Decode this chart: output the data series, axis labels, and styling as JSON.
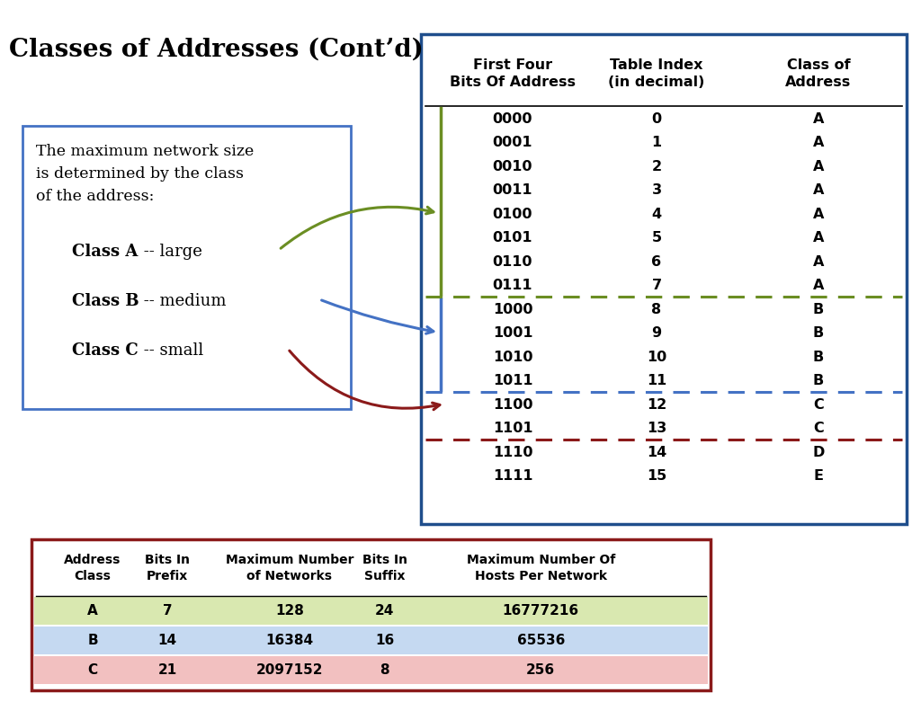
{
  "title": "Classes of Addresses (Cont’d)",
  "background_color": "#ffffff",
  "left_box_text": "The maximum network size\nis determined by the class\nof the address:",
  "class_labels": [
    {
      "bold": "Class A",
      "normal": " -- large"
    },
    {
      "bold": "Class B",
      "normal": " -- medium"
    },
    {
      "bold": "Class C",
      "normal": " -- small"
    }
  ],
  "table1_headers": [
    "First Four\nBits Of Address",
    "Table Index\n(in decimal)",
    "Class of\nAddress"
  ],
  "table1_rows": [
    [
      "0000",
      "0",
      "A"
    ],
    [
      "0001",
      "1",
      "A"
    ],
    [
      "0010",
      "2",
      "A"
    ],
    [
      "0011",
      "3",
      "A"
    ],
    [
      "0100",
      "4",
      "A"
    ],
    [
      "0101",
      "5",
      "A"
    ],
    [
      "0110",
      "6",
      "A"
    ],
    [
      "0111",
      "7",
      "A"
    ],
    [
      "1000",
      "8",
      "B"
    ],
    [
      "1001",
      "9",
      "B"
    ],
    [
      "1010",
      "10",
      "B"
    ],
    [
      "1011",
      "11",
      "B"
    ],
    [
      "1100",
      "12",
      "C"
    ],
    [
      "1101",
      "13",
      "C"
    ],
    [
      "1110",
      "14",
      "D"
    ],
    [
      "1111",
      "15",
      "E"
    ]
  ],
  "dashed_line_after_row": [
    7,
    11,
    13
  ],
  "dashed_line_colors": [
    "#6b8e23",
    "#4472c4",
    "#8b1a1a"
  ],
  "table2_headers": [
    "Address\nClass",
    "Bits In\nPrefix",
    "Maximum Number\nof Networks",
    "Bits In\nSuffix",
    "Maximum Number Of\nHosts Per Network"
  ],
  "table2_rows": [
    [
      "A",
      "7",
      "128",
      "24",
      "16777216"
    ],
    [
      "B",
      "14",
      "16384",
      "16",
      "65536"
    ],
    [
      "C",
      "21",
      "2097152",
      "8",
      "256"
    ]
  ],
  "table2_row_colors": [
    "#d9e8b0",
    "#c5d9f1",
    "#f2c0c0"
  ],
  "arrow_color_A": "#6b8e23",
  "arrow_color_B": "#4472c4",
  "arrow_color_C": "#8b1a1a",
  "left_box_border": "#4472c4",
  "table1_border": "#1f4e8c",
  "table2_border": "#8b1a1a",
  "vertical_bar_color_A": "#6b8e23",
  "vertical_bar_color_B": "#4472c4"
}
